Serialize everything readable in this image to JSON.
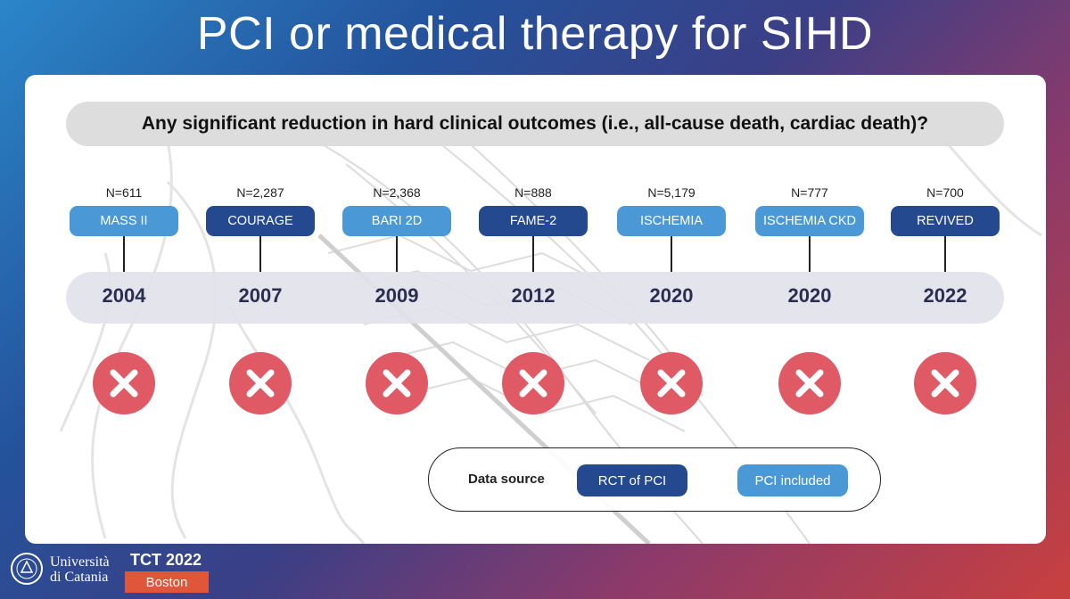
{
  "title": "PCI or medical therapy for SIHD",
  "question": "Any significant reduction in hard clinical outcomes (i.e., all-cause death, cardiac death)?",
  "trials": [
    {
      "n": "N=611",
      "name": "MASS II",
      "year": "2004",
      "type": "PCI included",
      "outcome": "no-reduction"
    },
    {
      "n": "N=2,287",
      "name": "COURAGE",
      "year": "2007",
      "type": "RCT of PCI",
      "outcome": "no-reduction"
    },
    {
      "n": "N=2,368",
      "name": "BARI 2D",
      "year": "2009",
      "type": "PCI included",
      "outcome": "no-reduction"
    },
    {
      "n": "N=888",
      "name": "FAME-2",
      "year": "2012",
      "type": "RCT of PCI",
      "outcome": "no-reduction"
    },
    {
      "n": "N=5,179",
      "name": "ISCHEMIA",
      "year": "2020",
      "type": "PCI included",
      "outcome": "no-reduction"
    },
    {
      "n": "N=777",
      "name": "ISCHEMIA CKD",
      "year": "2020",
      "type": "PCI included",
      "outcome": "no-reduction"
    },
    {
      "n": "N=700",
      "name": "REVIVED",
      "year": "2022",
      "type": "RCT of PCI",
      "outcome": "no-reduction"
    }
  ],
  "legend": {
    "label": "Data source",
    "items": [
      {
        "label": "RCT of PCI",
        "color": "#24498f"
      },
      {
        "label": "PCI included",
        "color": "#4a99d6"
      }
    ]
  },
  "colors": {
    "x_mark": "#e05a66",
    "pill_light": "#4a99d6",
    "pill_dark": "#24498f",
    "year_text": "#2a2f52"
  },
  "footer": {
    "university_line1": "Università",
    "university_line2": "di Catania",
    "conference": "TCT 2022",
    "city": "Boston"
  }
}
